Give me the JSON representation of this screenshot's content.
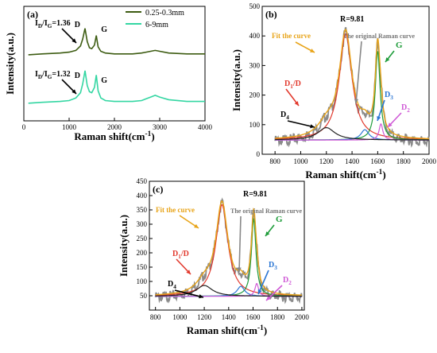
{
  "chart_data": [
    {
      "panel": "(a)",
      "type": "line",
      "xlabel": "Raman shift(cm",
      "xlabel_sup": "-1",
      "ylabel": "Intensity(a.u.)",
      "xlim": [
        0,
        4000
      ],
      "ylim": [
        0,
        1.3
      ],
      "x_ticks": [
        0,
        1000,
        2000,
        3000,
        4000
      ],
      "y_ticks_shown": false,
      "legend": {
        "position": "top-right",
        "entries": [
          {
            "label": "0.25-0.3mm",
            "color": "#3d5c12"
          },
          {
            "label": "6-9mm",
            "color": "#33d6a2"
          }
        ]
      },
      "series": [
        {
          "name": "0.25-0.3mm",
          "color": "#3d5c12",
          "x": [
            100,
            400,
            800,
            1000,
            1150,
            1250,
            1300,
            1350,
            1400,
            1450,
            1500,
            1560,
            1600,
            1640,
            1700,
            1800,
            2000,
            2400,
            2600,
            2700,
            2800,
            2900,
            3000,
            3200,
            3600,
            4000
          ],
          "y": [
            0.75,
            0.76,
            0.77,
            0.78,
            0.8,
            0.85,
            0.93,
            1.05,
            0.9,
            0.83,
            0.82,
            0.86,
            0.97,
            0.84,
            0.79,
            0.77,
            0.76,
            0.76,
            0.77,
            0.78,
            0.79,
            0.8,
            0.79,
            0.77,
            0.76,
            0.76
          ],
          "annotations": [
            {
              "text": "I",
              "sub": "D",
              "mid": "/I",
              "sub2": "G",
              "end": "=1.36"
            },
            {
              "text": "D",
              "x": 1350
            },
            {
              "text": "G",
              "x": 1600
            }
          ]
        },
        {
          "name": "6-9mm",
          "color": "#33d6a2",
          "x": [
            100,
            400,
            800,
            1000,
            1150,
            1250,
            1300,
            1350,
            1400,
            1450,
            1500,
            1560,
            1600,
            1640,
            1700,
            1800,
            2000,
            2400,
            2600,
            2700,
            2800,
            2900,
            3000,
            3200,
            3600,
            4000
          ],
          "y": [
            0.2,
            0.21,
            0.22,
            0.23,
            0.26,
            0.32,
            0.42,
            0.57,
            0.4,
            0.33,
            0.32,
            0.38,
            0.52,
            0.34,
            0.26,
            0.23,
            0.22,
            0.22,
            0.23,
            0.25,
            0.27,
            0.29,
            0.27,
            0.24,
            0.22,
            0.22
          ],
          "annotations": [
            {
              "text": "I",
              "sub": "D",
              "mid": "/I",
              "sub2": "G",
              "end": "=1.32"
            },
            {
              "text": "D",
              "x": 1350
            },
            {
              "text": "G",
              "x": 1600
            }
          ]
        }
      ]
    },
    {
      "panel": "(b)",
      "type": "line",
      "xlabel": "Raman shift(cm",
      "xlabel_sup": "-1",
      "ylabel": "Intensity(a.u.)",
      "xlim": [
        700,
        2000
      ],
      "ylim": [
        0,
        500
      ],
      "x_ticks": [
        800,
        1000,
        1200,
        1400,
        1600,
        1800,
        2000
      ],
      "y_ticks": [
        0,
        100,
        200,
        300,
        400,
        500
      ],
      "texts": {
        "r": "R=9.81",
        "fit": "Fit the curve",
        "orig": "The original Raman curve",
        "g": "G",
        "d1": "D",
        "d1sub": "1",
        "d1end": "/D",
        "d3": "D",
        "d3sub": "3",
        "d2": "D",
        "d2sub": "2",
        "d4": "D",
        "d4sub": "4"
      },
      "components": [
        {
          "name": "D1/D",
          "center": 1350,
          "amp": 360,
          "width": 120,
          "color": "#e23a2e"
        },
        {
          "name": "G",
          "center": 1600,
          "amp": 300,
          "width": 45,
          "color": "#1e9c3a"
        },
        {
          "name": "D3",
          "center": 1500,
          "amp": 35,
          "width": 75,
          "color": "#2b76d4"
        },
        {
          "name": "D2",
          "center": 1625,
          "amp": 55,
          "width": 35,
          "color": "#cf5ad6"
        },
        {
          "name": "D4",
          "center": 1200,
          "amp": 42,
          "width": 160,
          "color": "#222222"
        }
      ],
      "baseline": 48,
      "fit_color": "#e8a419",
      "original_color": "#8a8a8a",
      "envelope_color": "#e23a2e"
    },
    {
      "panel": "(c)",
      "type": "line",
      "xlabel": "Raman shift(cm",
      "xlabel_sup": "-1",
      "ylabel": "Intensity(a.u.)",
      "xlim": [
        750,
        2020
      ],
      "ylim": [
        0,
        450
      ],
      "x_ticks": [
        800,
        1000,
        1200,
        1400,
        1600,
        1800,
        2000
      ],
      "y_ticks": [
        50,
        100,
        150,
        200,
        250,
        300,
        350,
        400,
        450
      ],
      "texts": {
        "r": "R=9.81",
        "fit": "Fit the curve",
        "orig": "The original Raman curve",
        "g": "G",
        "d1": "D",
        "d1sub": "1",
        "d1end": "/D",
        "d3": "D",
        "d3sub": "3",
        "d2": "D",
        "d2sub": "2",
        "d4": "D",
        "d4sub": "4"
      },
      "components": [
        {
          "name": "D1/D",
          "center": 1345,
          "amp": 320,
          "width": 120,
          "color": "#e23a2e"
        },
        {
          "name": "G",
          "center": 1605,
          "amp": 270,
          "width": 45,
          "color": "#1e9c3a"
        },
        {
          "name": "D3",
          "center": 1500,
          "amp": 35,
          "width": 75,
          "color": "#2b76d4"
        },
        {
          "name": "D2",
          "center": 1630,
          "amp": 45,
          "width": 35,
          "color": "#cf5ad6"
        },
        {
          "name": "D4",
          "center": 1200,
          "amp": 38,
          "width": 160,
          "color": "#222222"
        }
      ],
      "baseline": 48,
      "fit_color": "#e8a419",
      "original_color": "#8a8a8a",
      "envelope_color": "#e23a2e"
    }
  ]
}
